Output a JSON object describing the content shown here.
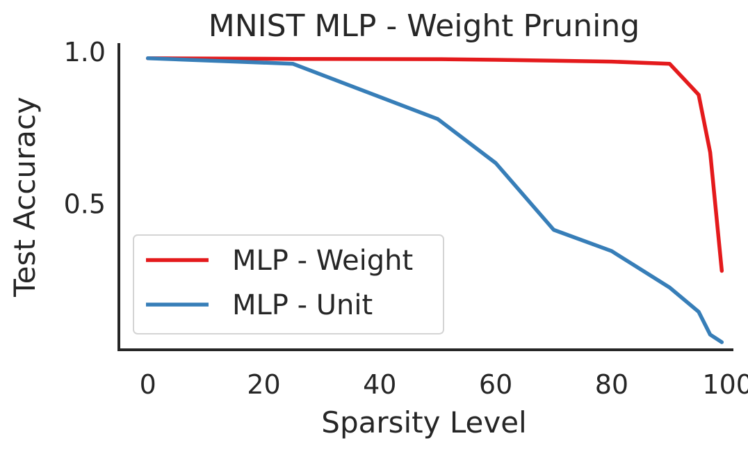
{
  "chart_data": {
    "type": "line",
    "title": "MNIST MLP - Weight Pruning",
    "xlabel": "Sparsity Level",
    "ylabel": "Test Accuracy",
    "xlim": [
      -5,
      101
    ],
    "ylim": [
      0.02,
      1.03
    ],
    "xticks": [
      0,
      20,
      40,
      60,
      80,
      100
    ],
    "xtick_labels": [
      "0",
      "20",
      "40",
      "60",
      "80",
      "100"
    ],
    "yticks": [
      0.5,
      1.0
    ],
    "ytick_labels": [
      "0.5",
      "1.0"
    ],
    "grid": false,
    "legend_position": "lower-left",
    "series": [
      {
        "name": "MLP - Weight",
        "color": "#e41a1c",
        "x": [
          0,
          25,
          50,
          60,
          70,
          80,
          90,
          95,
          97,
          99
        ],
        "y": [
          0.98,
          0.978,
          0.977,
          0.975,
          0.972,
          0.969,
          0.962,
          0.86,
          0.67,
          0.28
        ]
      },
      {
        "name": "MLP - Unit",
        "color": "#377eb8",
        "x": [
          0,
          25,
          50,
          60,
          70,
          80,
          90,
          95,
          97,
          99
        ],
        "y": [
          0.98,
          0.962,
          0.78,
          0.635,
          0.415,
          0.345,
          0.225,
          0.145,
          0.07,
          0.045
        ]
      }
    ]
  }
}
